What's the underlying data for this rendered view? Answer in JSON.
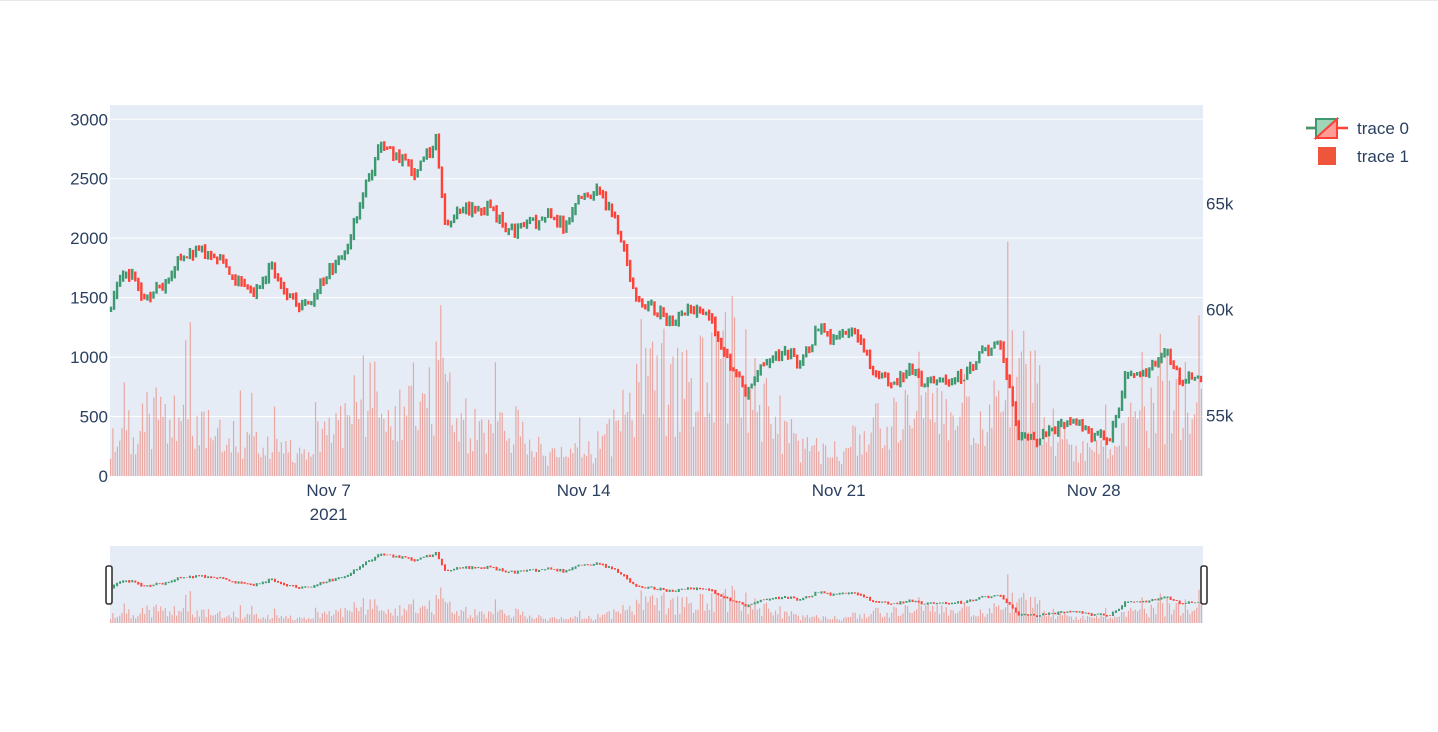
{
  "colors": {
    "plot_bg": "#e5ecf6",
    "grid": "#ffffff",
    "increasing": "#3d9970",
    "decreasing": "#ff4136",
    "volume": "#ef553b",
    "text": "#2a3f5f"
  },
  "chart_data": {
    "type": "candlestick",
    "x_range": [
      "2021-11-01",
      "2021-12-01"
    ],
    "x_ticks": [
      {
        "date": "2021-11-07",
        "label": "Nov 7",
        "sub": "2021"
      },
      {
        "date": "2021-11-14",
        "label": "Nov 14",
        "sub": ""
      },
      {
        "date": "2021-11-21",
        "label": "Nov 21",
        "sub": ""
      },
      {
        "date": "2021-11-28",
        "label": "Nov 28",
        "sub": ""
      }
    ],
    "y_left": {
      "range": [
        0,
        3120
      ],
      "ticks": [
        "0",
        "500",
        "1000",
        "1500",
        "2000",
        "2500",
        "3000"
      ],
      "tick_values": [
        0,
        500,
        1000,
        1500,
        2000,
        2500,
        3000
      ]
    },
    "y_right": {
      "range": [
        52150,
        69650
      ],
      "ticks": [
        "55k",
        "60k",
        "65k"
      ],
      "tick_values": [
        55000,
        60000,
        65000
      ]
    },
    "grid": true,
    "legend_position": "top-right",
    "rangeslider": true,
    "series": [
      {
        "name": "trace 0",
        "kind": "candlestick",
        "axis": "left",
        "anchors": [
          {
            "date": "2021-11-01",
            "close": 1400
          },
          {
            "date": "2021-11-01 12:00",
            "close": 1750
          },
          {
            "date": "2021-11-02",
            "close": 1500
          },
          {
            "date": "2021-11-02 12:00",
            "close": 1600
          },
          {
            "date": "2021-11-03",
            "close": 1850
          },
          {
            "date": "2021-11-03 12:00",
            "close": 1900
          },
          {
            "date": "2021-11-04",
            "close": 1850
          },
          {
            "date": "2021-11-04 12:00",
            "close": 1650
          },
          {
            "date": "2021-11-05",
            "close": 1550
          },
          {
            "date": "2021-11-05 12:00",
            "close": 1750
          },
          {
            "date": "2021-11-06",
            "close": 1500
          },
          {
            "date": "2021-11-06 12:00",
            "close": 1420
          },
          {
            "date": "2021-11-07",
            "close": 1700
          },
          {
            "date": "2021-11-07 12:00",
            "close": 1850
          },
          {
            "date": "2021-11-08",
            "close": 2400
          },
          {
            "date": "2021-11-08 12:00",
            "close": 2800
          },
          {
            "date": "2021-11-09",
            "close": 2650
          },
          {
            "date": "2021-11-09 12:00",
            "close": 2550
          },
          {
            "date": "2021-11-10",
            "close": 2850
          },
          {
            "date": "2021-11-10 06:00",
            "close": 2150
          },
          {
            "date": "2021-11-10 18:00",
            "close": 2250
          },
          {
            "date": "2021-11-11 12:00",
            "close": 2250
          },
          {
            "date": "2021-11-12",
            "close": 2050
          },
          {
            "date": "2021-11-12 12:00",
            "close": 2100
          },
          {
            "date": "2021-11-13",
            "close": 2200
          },
          {
            "date": "2021-11-13 12:00",
            "close": 2100
          },
          {
            "date": "2021-11-14",
            "close": 2350
          },
          {
            "date": "2021-11-14 12:00",
            "close": 2400
          },
          {
            "date": "2021-11-15",
            "close": 2100
          },
          {
            "date": "2021-11-15 12:00",
            "close": 1500
          },
          {
            "date": "2021-11-16",
            "close": 1400
          },
          {
            "date": "2021-11-16 12:00",
            "close": 1300
          },
          {
            "date": "2021-11-17",
            "close": 1400
          },
          {
            "date": "2021-11-17 12:00",
            "close": 1350
          },
          {
            "date": "2021-11-18",
            "close": 1000
          },
          {
            "date": "2021-11-18 12:00",
            "close": 700
          },
          {
            "date": "2021-11-19",
            "close": 950
          },
          {
            "date": "2021-11-19 12:00",
            "close": 1050
          },
          {
            "date": "2021-11-20",
            "close": 950
          },
          {
            "date": "2021-11-20 12:00",
            "close": 1250
          },
          {
            "date": "2021-11-21",
            "close": 1150
          },
          {
            "date": "2021-11-21 12:00",
            "close": 1250
          },
          {
            "date": "2021-11-22",
            "close": 900
          },
          {
            "date": "2021-11-22 12:00",
            "close": 750
          },
          {
            "date": "2021-11-23",
            "close": 900
          },
          {
            "date": "2021-11-23 12:00",
            "close": 750
          },
          {
            "date": "2021-11-24",
            "close": 800
          },
          {
            "date": "2021-11-24 12:00",
            "close": 850
          },
          {
            "date": "2021-11-25",
            "close": 1050
          },
          {
            "date": "2021-11-25 12:00",
            "close": 1100
          },
          {
            "date": "2021-11-26",
            "close": 350
          },
          {
            "date": "2021-11-26 12:00",
            "close": 300
          },
          {
            "date": "2021-11-27",
            "close": 400
          },
          {
            "date": "2021-11-27 12:00",
            "close": 450
          },
          {
            "date": "2021-11-28",
            "close": 350
          },
          {
            "date": "2021-11-28 12:00",
            "close": 300
          },
          {
            "date": "2021-11-29",
            "close": 900
          },
          {
            "date": "2021-11-29 12:00",
            "close": 850
          },
          {
            "date": "2021-11-30",
            "close": 1050
          },
          {
            "date": "2021-11-30 12:00",
            "close": 800
          },
          {
            "date": "2021-12-01",
            "close": 850
          }
        ]
      },
      {
        "name": "trace 1",
        "kind": "bar",
        "axis": "right",
        "note_values": "volume bars, plotted against the right axis baseline",
        "profile": [
          {
            "date": "2021-11-01",
            "level": 300
          },
          {
            "date": "2021-11-02",
            "level": 500
          },
          {
            "date": "2021-11-03",
            "level": 650
          },
          {
            "date": "2021-11-04",
            "level": 350
          },
          {
            "date": "2021-11-05",
            "level": 300
          },
          {
            "date": "2021-11-06",
            "level": 250
          },
          {
            "date": "2021-11-07",
            "level": 350
          },
          {
            "date": "2021-11-08",
            "level": 750
          },
          {
            "date": "2021-11-09",
            "level": 500
          },
          {
            "date": "2021-11-10",
            "level": 900
          },
          {
            "date": "2021-11-11",
            "level": 400
          },
          {
            "date": "2021-11-12",
            "level": 450
          },
          {
            "date": "2021-11-13",
            "level": 200
          },
          {
            "date": "2021-11-14",
            "level": 200
          },
          {
            "date": "2021-11-15",
            "level": 500
          },
          {
            "date": "2021-11-16",
            "level": 900
          },
          {
            "date": "2021-11-17",
            "level": 800
          },
          {
            "date": "2021-11-18",
            "level": 1100
          },
          {
            "date": "2021-11-19",
            "level": 650
          },
          {
            "date": "2021-11-20",
            "level": 250
          },
          {
            "date": "2021-11-21",
            "level": 200
          },
          {
            "date": "2021-11-22",
            "level": 550
          },
          {
            "date": "2021-11-23",
            "level": 600
          },
          {
            "date": "2021-11-24",
            "level": 500
          },
          {
            "date": "2021-11-25",
            "level": 450
          },
          {
            "date": "2021-11-26",
            "level": 1000
          },
          {
            "date": "2021-11-27",
            "level": 350
          },
          {
            "date": "2021-11-28",
            "level": 200
          },
          {
            "date": "2021-11-29",
            "level": 550
          },
          {
            "date": "2021-11-30",
            "level": 650
          },
          {
            "date": "2021-12-01",
            "level": 700
          }
        ]
      }
    ]
  },
  "legend": {
    "items": [
      {
        "label": "trace 0"
      },
      {
        "label": "trace 1"
      }
    ]
  }
}
